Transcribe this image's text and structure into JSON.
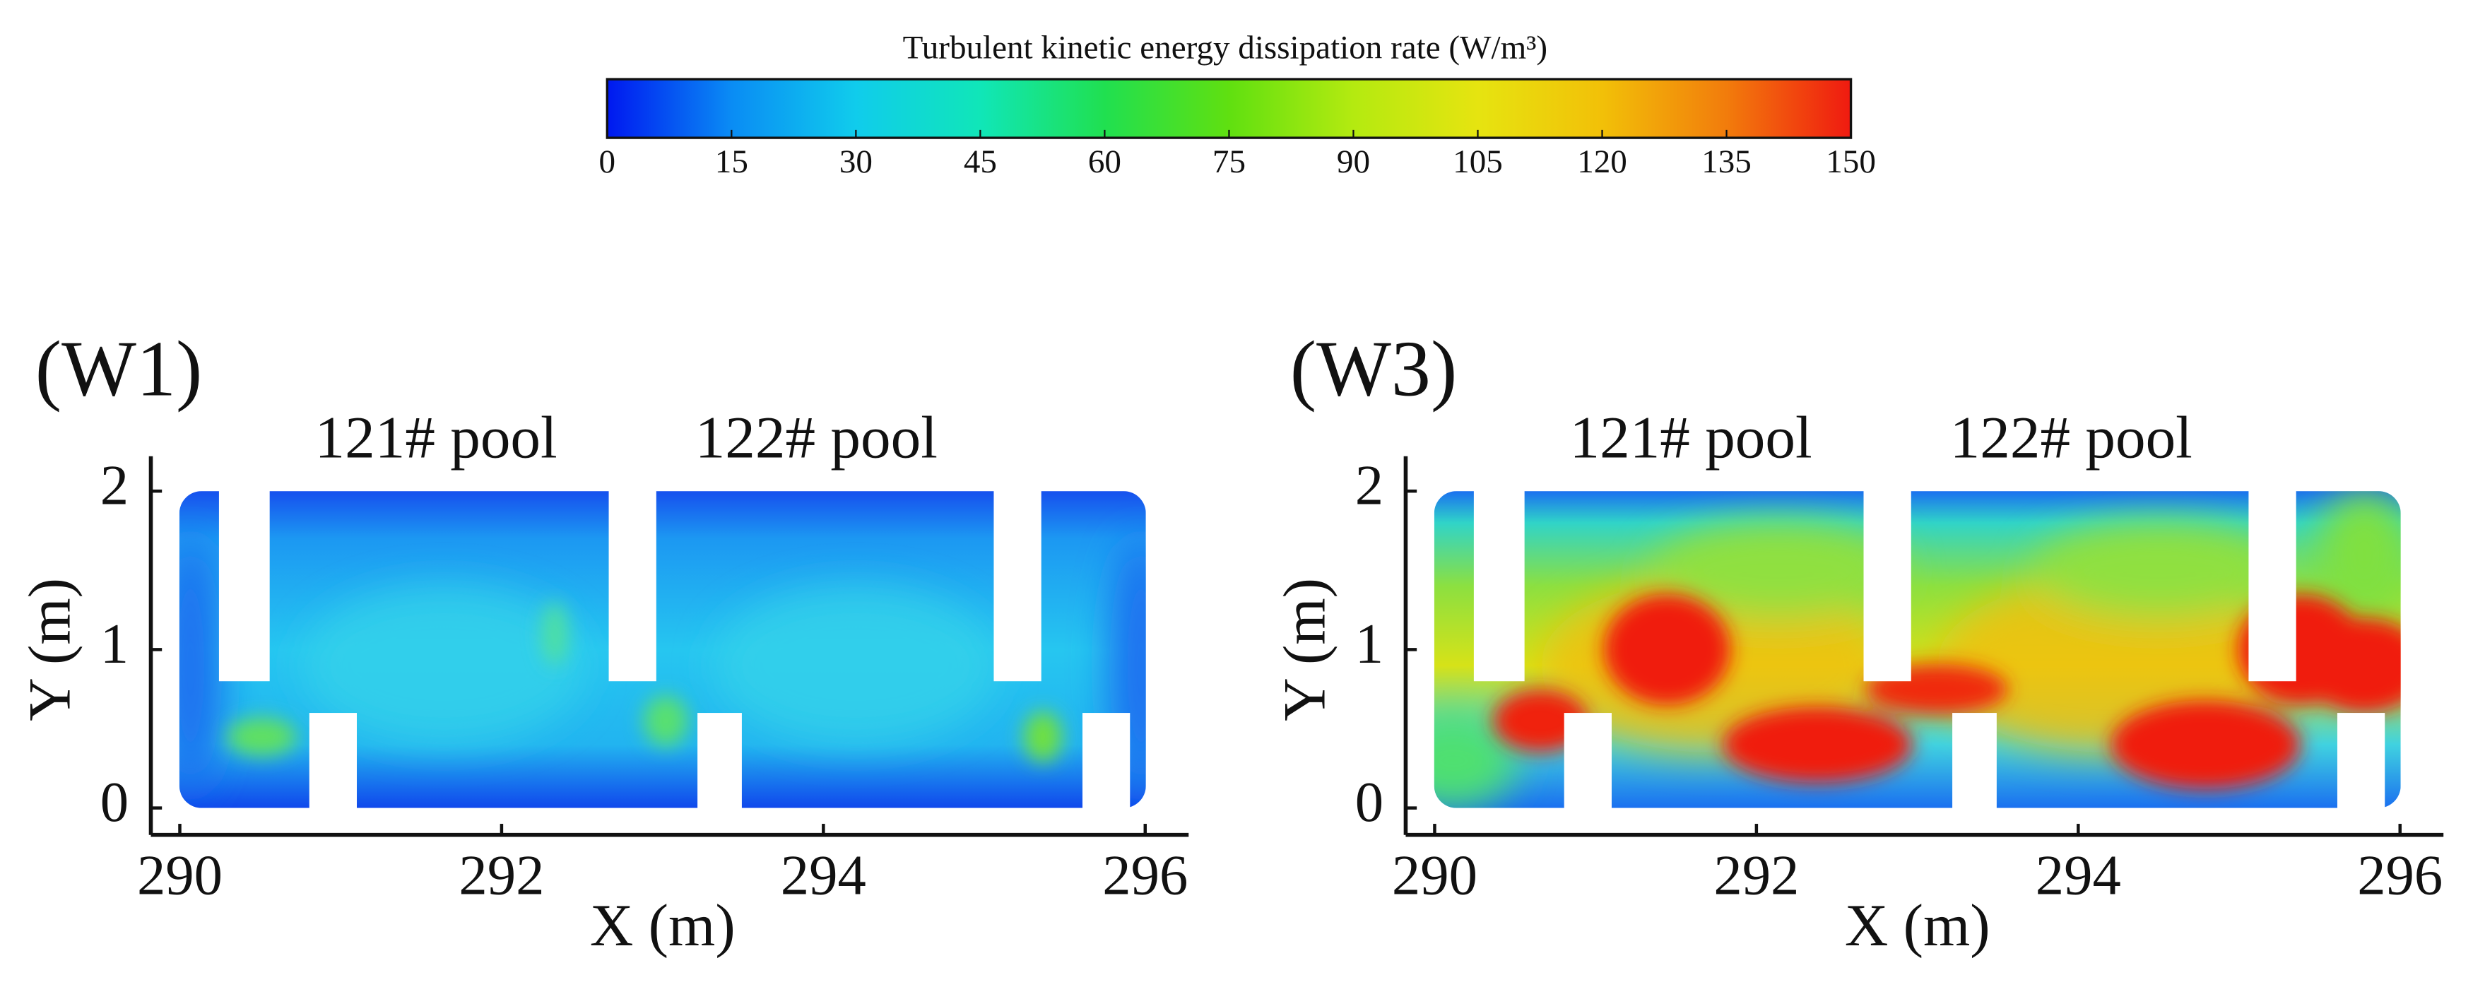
{
  "chart_data": [
    {
      "type": "colorbar",
      "title": "Turbulent kinetic energy dissipation rate (W/m³)",
      "clim": [
        0,
        150
      ],
      "ticks": [
        0,
        15,
        30,
        45,
        60,
        75,
        90,
        105,
        120,
        135,
        150
      ],
      "colors": [
        "#0018f0",
        "#0a8cf4",
        "#10ccec",
        "#10e6b8",
        "#20e050",
        "#60e010",
        "#b4ea10",
        "#e6e410",
        "#f2c008",
        "#f27c0c",
        "#f01a10"
      ]
    },
    {
      "type": "field",
      "panel_label": "(W1)",
      "annotations": [
        "121# pool",
        "122# pool"
      ],
      "x_label": "X (m)",
      "y_label": "Y (m)",
      "xlim": [
        289.82,
        296.27
      ],
      "ylim": [
        -0.17,
        2.22
      ],
      "xticks": [
        290,
        292,
        294,
        296
      ],
      "yticks": [
        0,
        1,
        2
      ]
    },
    {
      "type": "field",
      "panel_label": "(W3)",
      "annotations": [
        "121# pool",
        "122# pool"
      ],
      "x_label": "X (m)",
      "y_label": "Y (m)",
      "xlim": [
        289.82,
        296.27
      ],
      "ylim": [
        -0.17,
        2.22
      ],
      "xticks": [
        290,
        292,
        294,
        296
      ],
      "yticks": [
        0,
        1,
        2
      ]
    }
  ]
}
